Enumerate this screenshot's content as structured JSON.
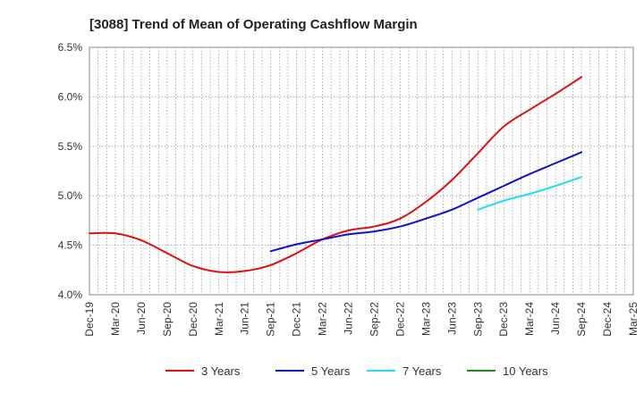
{
  "chart_data": {
    "type": "line",
    "title": "[3088]  Trend of Mean of Operating Cashflow Margin",
    "xlabel": "",
    "ylabel": "",
    "ylim": [
      4.0,
      6.5
    ],
    "yticks": [
      4.0,
      4.5,
      5.0,
      5.5,
      6.0,
      6.5
    ],
    "ytick_labels": [
      "4.0%",
      "4.5%",
      "5.0%",
      "5.5%",
      "6.0%",
      "6.5%"
    ],
    "categories": [
      "Dec-19",
      "Mar-20",
      "Jun-20",
      "Sep-20",
      "Dec-20",
      "Mar-21",
      "Jun-21",
      "Sep-21",
      "Dec-21",
      "Mar-22",
      "Jun-22",
      "Sep-22",
      "Dec-22",
      "Mar-23",
      "Jun-23",
      "Sep-23",
      "Dec-23",
      "Mar-24",
      "Jun-24",
      "Sep-24",
      "Dec-24",
      "Mar-25"
    ],
    "grid": true,
    "legend_position": "bottom",
    "series": [
      {
        "name": "3 Years",
        "color": "#dd1111",
        "points": [
          [
            0,
            4.62
          ],
          [
            1,
            4.62
          ],
          [
            2,
            4.55
          ],
          [
            3,
            4.42
          ],
          [
            4,
            4.29
          ],
          [
            5,
            4.23
          ],
          [
            6,
            4.24
          ],
          [
            7,
            4.3
          ],
          [
            8,
            4.42
          ],
          [
            9,
            4.56
          ],
          [
            10,
            4.65
          ],
          [
            11,
            4.69
          ],
          [
            12,
            4.77
          ],
          [
            13,
            4.94
          ],
          [
            14,
            5.16
          ],
          [
            15,
            5.43
          ],
          [
            16,
            5.7
          ],
          [
            17,
            5.87
          ],
          [
            18,
            6.03
          ],
          [
            19,
            6.2
          ]
        ]
      },
      {
        "name": "5 Years",
        "color": "#1111cc",
        "points": [
          [
            7,
            4.44
          ],
          [
            8,
            4.51
          ],
          [
            9,
            4.56
          ],
          [
            10,
            4.61
          ],
          [
            11,
            4.64
          ],
          [
            12,
            4.69
          ],
          [
            13,
            4.77
          ],
          [
            14,
            4.86
          ],
          [
            15,
            4.98
          ],
          [
            16,
            5.1
          ],
          [
            17,
            5.22
          ],
          [
            18,
            5.33
          ],
          [
            19,
            5.44
          ]
        ]
      },
      {
        "name": "7 Years",
        "color": "#22ddee",
        "points": [
          [
            15,
            4.86
          ],
          [
            16,
            4.95
          ],
          [
            17,
            5.02
          ],
          [
            18,
            5.1
          ],
          [
            19,
            5.19
          ]
        ]
      },
      {
        "name": "10 Years",
        "color": "#228822",
        "points": []
      }
    ]
  }
}
